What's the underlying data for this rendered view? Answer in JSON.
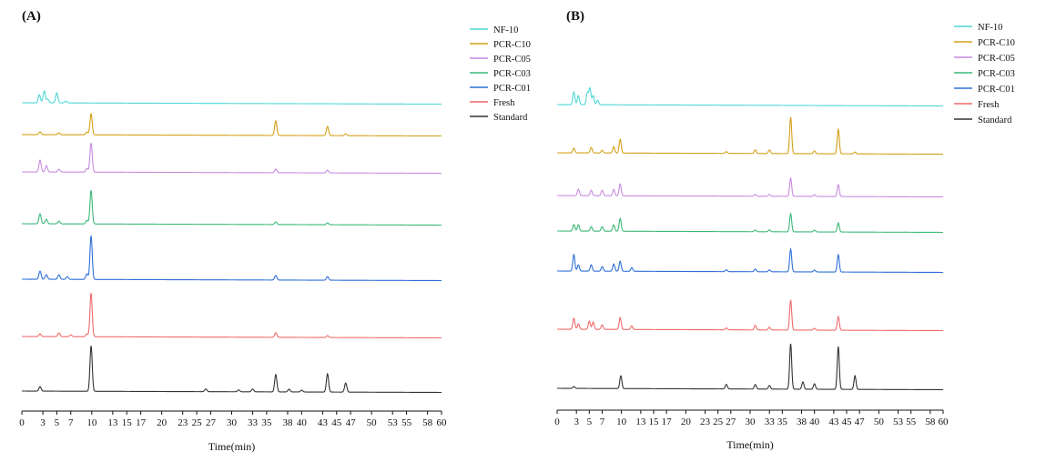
{
  "figure": {
    "panel_labels": [
      "(A)",
      "(B)"
    ]
  },
  "chart_data": [
    {
      "type": "line",
      "panel": "(A)",
      "title": "",
      "xlabel": "Time(min)",
      "ylabel": "",
      "xlim": [
        0,
        60
      ],
      "x_ticks": [
        0,
        3,
        5,
        7,
        10,
        13,
        15,
        17,
        20,
        23,
        25,
        27,
        30,
        33,
        35,
        38,
        40,
        43,
        45,
        47,
        50,
        53,
        55,
        58,
        60
      ],
      "legend_position": "top-right",
      "series": [
        {
          "name": "NF-10",
          "color": "#4fd6d6",
          "peaks": [
            [
              2.5,
              9
            ],
            [
              3.2,
              13
            ],
            [
              3.7,
              4
            ],
            [
              5.0,
              11
            ],
            [
              6.3,
              2
            ]
          ]
        },
        {
          "name": "PCR-C10",
          "color": "#d4a017",
          "peaks": [
            [
              2.6,
              3
            ],
            [
              5.3,
              2
            ],
            [
              9.3,
              3
            ],
            [
              9.9,
              23
            ],
            [
              36.3,
              16
            ],
            [
              43.7,
              10
            ],
            [
              46.3,
              2
            ]
          ]
        },
        {
          "name": "PCR-C05",
          "color": "#c78ae0",
          "peaks": [
            [
              2.6,
              13
            ],
            [
              3.5,
              7
            ],
            [
              5.3,
              3
            ],
            [
              9.3,
              4
            ],
            [
              9.9,
              32
            ],
            [
              36.3,
              4
            ],
            [
              43.7,
              3
            ]
          ]
        },
        {
          "name": "PCR-C03",
          "color": "#3cb878",
          "peaks": [
            [
              2.6,
              11
            ],
            [
              3.5,
              5
            ],
            [
              5.3,
              3
            ],
            [
              9.3,
              4
            ],
            [
              9.9,
              37
            ],
            [
              36.3,
              3
            ],
            [
              43.7,
              2
            ]
          ]
        },
        {
          "name": "PCR-C01",
          "color": "#2f6fd8",
          "peaks": [
            [
              2.6,
              9
            ],
            [
              3.5,
              5
            ],
            [
              5.3,
              5
            ],
            [
              6.5,
              3
            ],
            [
              9.3,
              6
            ],
            [
              9.9,
              48
            ],
            [
              36.3,
              5
            ],
            [
              43.7,
              4
            ]
          ]
        },
        {
          "name": "Fresh",
          "color": "#f06a6a",
          "peaks": [
            [
              2.6,
              3
            ],
            [
              5.3,
              4
            ],
            [
              7.0,
              2
            ],
            [
              9.3,
              3
            ],
            [
              9.9,
              48
            ],
            [
              36.3,
              5
            ],
            [
              43.7,
              2
            ]
          ]
        },
        {
          "name": "Standard",
          "color": "#333333",
          "peaks": [
            [
              2.6,
              5
            ],
            [
              9.9,
              50
            ],
            [
              26.3,
              3
            ],
            [
              31.0,
              2
            ],
            [
              33.0,
              3
            ],
            [
              36.3,
              19
            ],
            [
              38.2,
              3
            ],
            [
              40.0,
              2
            ],
            [
              43.7,
              20
            ],
            [
              46.3,
              10
            ]
          ]
        }
      ]
    },
    {
      "type": "line",
      "panel": "(B)",
      "title": "",
      "xlabel": "Time(min)",
      "ylabel": "",
      "xlim": [
        0,
        60
      ],
      "x_ticks": [
        0,
        3,
        5,
        7,
        10,
        13,
        15,
        17,
        20,
        23,
        25,
        27,
        30,
        33,
        35,
        38,
        40,
        43,
        45,
        47,
        50,
        53,
        55,
        58,
        60
      ],
      "legend_position": "top-right",
      "series": [
        {
          "name": "NF-10",
          "color": "#4fd6d6",
          "peaks": [
            [
              2.6,
              14
            ],
            [
              3.3,
              10
            ],
            [
              4.7,
              13
            ],
            [
              5.1,
              18
            ],
            [
              5.6,
              10
            ],
            [
              6.3,
              5
            ]
          ]
        },
        {
          "name": "PCR-C10",
          "color": "#d4a017",
          "peaks": [
            [
              2.6,
              5
            ],
            [
              5.3,
              6
            ],
            [
              7.0,
              3
            ],
            [
              8.8,
              7
            ],
            [
              9.8,
              15
            ],
            [
              26.3,
              2
            ],
            [
              30.8,
              4
            ],
            [
              33.0,
              4
            ],
            [
              36.3,
              40
            ],
            [
              40.0,
              3
            ],
            [
              43.7,
              27
            ],
            [
              46.3,
              2
            ]
          ]
        },
        {
          "name": "PCR-C05",
          "color": "#c78ae0",
          "peaks": [
            [
              3.3,
              7
            ],
            [
              5.3,
              6
            ],
            [
              7.0,
              6
            ],
            [
              8.8,
              7
            ],
            [
              9.8,
              13
            ],
            [
              30.8,
              2
            ],
            [
              33.0,
              2
            ],
            [
              36.3,
              20
            ],
            [
              40.0,
              2
            ],
            [
              43.7,
              13
            ]
          ]
        },
        {
          "name": "PCR-C03",
          "color": "#3cb878",
          "peaks": [
            [
              2.6,
              7
            ],
            [
              3.3,
              7
            ],
            [
              5.3,
              5
            ],
            [
              7.0,
              5
            ],
            [
              8.8,
              7
            ],
            [
              9.8,
              14
            ],
            [
              30.8,
              2
            ],
            [
              33.0,
              2
            ],
            [
              36.3,
              20
            ],
            [
              40.0,
              2
            ],
            [
              43.7,
              10
            ]
          ]
        },
        {
          "name": "PCR-C01",
          "color": "#2f6fd8",
          "peaks": [
            [
              2.6,
              18
            ],
            [
              3.3,
              7
            ],
            [
              5.3,
              7
            ],
            [
              7.0,
              5
            ],
            [
              8.8,
              8
            ],
            [
              9.8,
              11
            ],
            [
              11.6,
              4
            ],
            [
              26.3,
              2
            ],
            [
              30.8,
              3
            ],
            [
              33.0,
              2
            ],
            [
              36.3,
              25
            ],
            [
              40.0,
              2
            ],
            [
              43.7,
              19
            ]
          ]
        },
        {
          "name": "Fresh",
          "color": "#f06a6a",
          "peaks": [
            [
              2.6,
              12
            ],
            [
              3.3,
              6
            ],
            [
              5.0,
              9
            ],
            [
              5.6,
              8
            ],
            [
              7.0,
              5
            ],
            [
              9.8,
              13
            ],
            [
              11.6,
              4
            ],
            [
              26.3,
              2
            ],
            [
              30.8,
              5
            ],
            [
              33.0,
              3
            ],
            [
              36.3,
              33
            ],
            [
              40.0,
              2
            ],
            [
              43.7,
              15
            ]
          ]
        },
        {
          "name": "Standard",
          "color": "#333333",
          "peaks": [
            [
              2.6,
              2
            ],
            [
              9.9,
              14
            ],
            [
              26.3,
              5
            ],
            [
              30.8,
              5
            ],
            [
              33.0,
              4
            ],
            [
              36.3,
              50
            ],
            [
              38.2,
              8
            ],
            [
              40.0,
              6
            ],
            [
              43.7,
              47
            ],
            [
              46.3,
              15
            ]
          ]
        }
      ]
    }
  ]
}
